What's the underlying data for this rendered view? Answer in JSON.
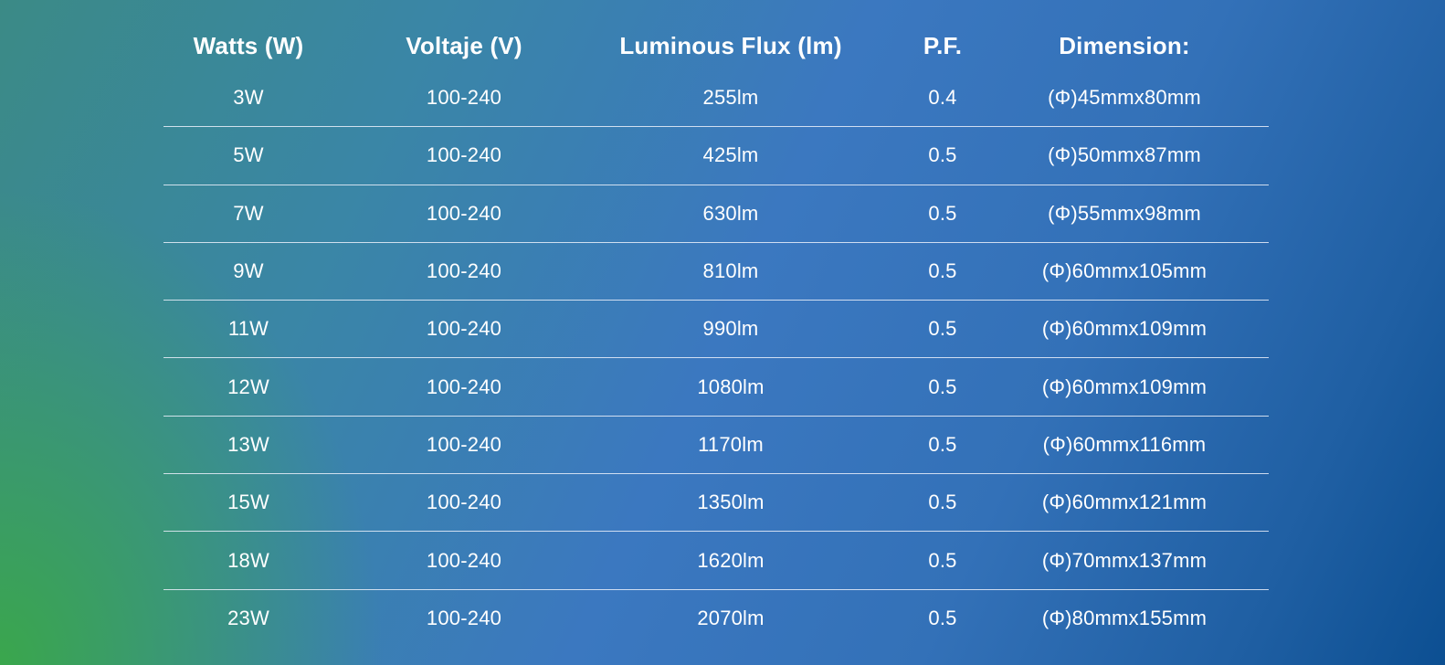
{
  "table": {
    "headers": [
      "Watts (W)",
      "Voltaje (V)",
      "Luminous Flux (lm)",
      "P.F.",
      "Dimension:"
    ],
    "rows": [
      [
        "3W",
        "100-240",
        "255lm",
        "0.4",
        "(Φ)45mmx80mm"
      ],
      [
        "5W",
        "100-240",
        "425lm",
        "0.5",
        "(Φ)50mmx87mm"
      ],
      [
        "7W",
        "100-240",
        "630lm",
        "0.5",
        "(Φ)55mmx98mm"
      ],
      [
        "9W",
        "100-240",
        "810lm",
        "0.5",
        "(Φ)60mmx105mm"
      ],
      [
        "11W",
        "100-240",
        "990lm",
        "0.5",
        "(Φ)60mmx109mm"
      ],
      [
        "12W",
        "100-240",
        "1080lm",
        "0.5",
        "(Φ)60mmx109mm"
      ],
      [
        "13W",
        "100-240",
        "1170lm",
        "0.5",
        "(Φ)60mmx116mm"
      ],
      [
        "15W",
        "100-240",
        "1350lm",
        "0.5",
        "(Φ)60mmx121mm"
      ],
      [
        "18W",
        "100-240",
        "1620lm",
        "0.5",
        "(Φ)70mmx137mm"
      ],
      [
        "23W",
        "100-240",
        "2070lm",
        "0.5",
        "(Φ)80mmx155mm"
      ]
    ]
  },
  "colors": {
    "gradient_green": "#3aa848",
    "gradient_blue": "#3b78c0",
    "gradient_dark_blue": "#0c4f92",
    "text": "#ffffff"
  }
}
